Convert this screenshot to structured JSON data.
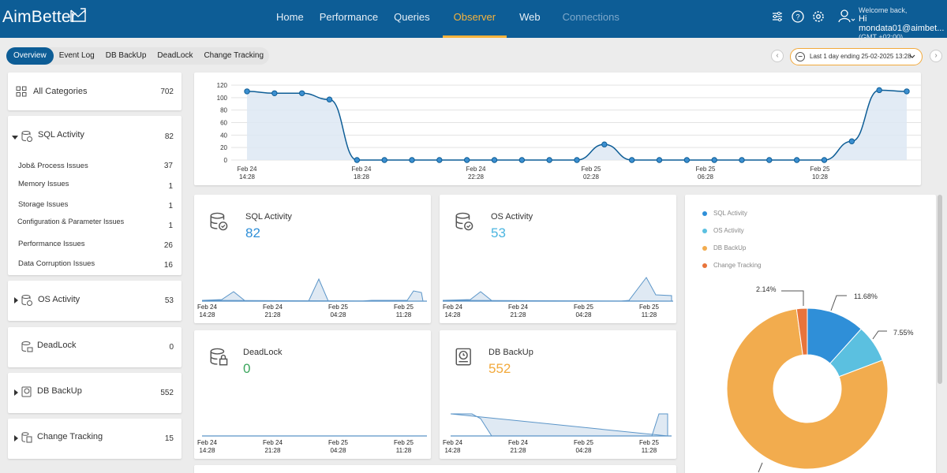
{
  "header": {
    "logo": "AimBetter",
    "nav": [
      "Home",
      "Performance",
      "Queries",
      "Observer",
      "Web",
      "Connections"
    ],
    "active_nav": "Observer",
    "welcome": "Welcome back,",
    "user": "Hi mondata01@aimbet...",
    "timezone": "(GMT +02:00)",
    "icons": [
      "sliders-icon",
      "help-icon",
      "settings-icon",
      "user-icon"
    ]
  },
  "subtabs": [
    "Overview",
    "Event Log",
    "DB BackUp",
    "DeadLock",
    "Change Tracking"
  ],
  "date_range": "Last 1 day ending  25-02-2025 13:28",
  "sidebar": {
    "all": {
      "label": "All Categories",
      "count": "702"
    },
    "sql": {
      "label": "SQL Activity",
      "count": "82"
    },
    "sql_items": [
      {
        "label": "Job& Process Issues",
        "count": "37"
      },
      {
        "label": "Memory Issues",
        "count": "1"
      },
      {
        "label": "Storage Issues",
        "count": "1"
      },
      {
        "label": "Configuration & Parameter Issues",
        "count": "1"
      },
      {
        "label": "Performance Issues",
        "count": "26"
      },
      {
        "label": "Data Corruption Issues",
        "count": "16"
      }
    ],
    "os": {
      "label": "OS Activity",
      "count": "53"
    },
    "deadlock": {
      "label": "DeadLock",
      "count": "0"
    },
    "backup": {
      "label": "DB BackUp",
      "count": "552"
    },
    "change": {
      "label": "Change Tracking",
      "count": "15"
    }
  },
  "widgets": {
    "sql": {
      "title": "SQL Activity",
      "value": "82",
      "color": "#2f8fd8"
    },
    "os": {
      "title": "OS Activity",
      "value": "53",
      "color": "#4bb5e0"
    },
    "deadlock": {
      "title": "DeadLock",
      "value": "0",
      "color": "#3ba55c"
    },
    "backup": {
      "title": "DB BackUp",
      "value": "552",
      "color": "#f2a93b"
    },
    "ticks": [
      [
        "Feb 24",
        "14:28"
      ],
      [
        "Feb 24",
        "21:28"
      ],
      [
        "Feb 25",
        "04:28"
      ],
      [
        "Feb 25",
        "11:28"
      ]
    ]
  },
  "chart_data": [
    {
      "type": "line",
      "x_ticks": [
        [
          "Feb 24",
          "14:28"
        ],
        [
          "Feb 24",
          "18:28"
        ],
        [
          "Feb 24",
          "22:28"
        ],
        [
          "Feb 25",
          "02:28"
        ],
        [
          "Feb 25",
          "06:28"
        ],
        [
          "Feb 25",
          "10:28"
        ]
      ],
      "y_ticks": [
        0,
        20,
        40,
        60,
        80,
        100,
        120
      ],
      "ylim": [
        0,
        120
      ],
      "values": [
        110,
        107,
        107,
        97,
        0,
        0,
        0,
        0,
        0,
        0,
        0,
        0,
        0,
        25,
        0,
        0,
        0,
        0,
        0,
        0,
        0,
        0,
        30,
        112,
        110
      ],
      "color": "#0d5d96"
    },
    {
      "type": "pie",
      "labels": [
        "SQL Activity",
        "OS Activity",
        "DB BackUp",
        "Change Tracking"
      ],
      "values": [
        11.68,
        7.55,
        78.63,
        2.14
      ],
      "value_labels": [
        "11.68%",
        "7.55%",
        "",
        "2.14%"
      ],
      "colors": [
        "#2f8fd8",
        "#5bc0e0",
        "#f2ac4e",
        "#e8743b"
      ]
    }
  ]
}
